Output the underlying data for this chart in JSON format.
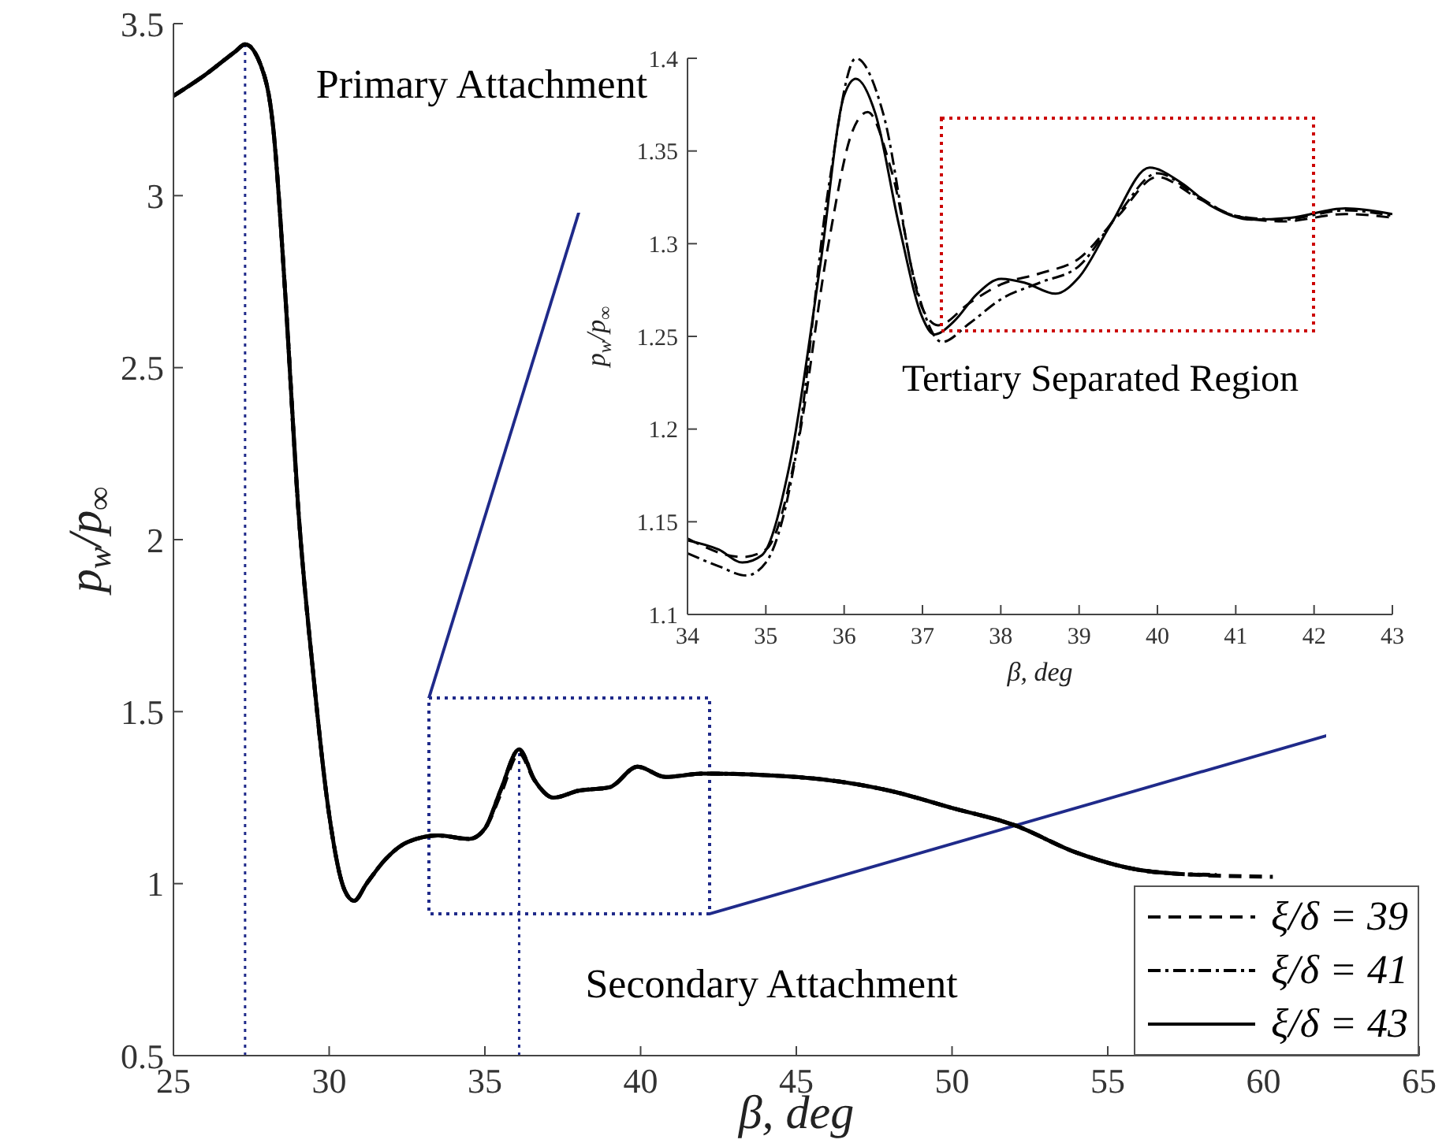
{
  "chart_data": [
    {
      "type": "line",
      "xlabel": "β, deg",
      "ylabel": "p$_{w}$/p$_{∞}$",
      "xlim": [
        25,
        65
      ],
      "xticks": [
        25,
        30,
        35,
        40,
        45,
        50,
        55,
        60,
        65
      ],
      "ylim": [
        0.5,
        3.5
      ],
      "yticks": [
        0.5,
        1,
        1.5,
        2,
        2.5,
        3,
        3.5
      ],
      "grid": false,
      "legend": "bottom right",
      "marker": "none",
      "series": [
        {
          "name": "ξ/δ = 39",
          "color": "#000000",
          "line_style": "dashed",
          "x": [
            25,
            26,
            27,
            27.3,
            27.8,
            28.2,
            28.6,
            29,
            29.5,
            30,
            30.5,
            30.8,
            31.2,
            31.8,
            32.5,
            33.5,
            34.5,
            35,
            35.5,
            36.1,
            36.6,
            37.2,
            38,
            39,
            39.9,
            40.8,
            42,
            45,
            48,
            50,
            52,
            54,
            56,
            57,
            58,
            60.3
          ],
          "values": [
            3.29,
            3.35,
            3.42,
            3.44,
            3.38,
            3.2,
            2.7,
            2.1,
            1.6,
            1.2,
            0.98,
            0.95,
            1.0,
            1.07,
            1.12,
            1.14,
            1.13,
            1.16,
            1.26,
            1.38,
            1.3,
            1.25,
            1.27,
            1.28,
            1.34,
            1.31,
            1.32,
            1.31,
            1.27,
            1.22,
            1.17,
            1.09,
            1.04,
            1.03,
            1.025,
            1.02
          ]
        },
        {
          "name": "ξ/δ = 41",
          "color": "#000000",
          "line_style": "dashdot",
          "x": [
            25,
            26,
            27,
            27.3,
            27.8,
            28.2,
            28.6,
            29,
            29.5,
            30,
            30.5,
            30.8,
            31.2,
            31.8,
            32.5,
            33.5,
            34.5,
            35,
            35.5,
            36.1,
            36.6,
            37.2,
            38,
            39,
            39.9,
            40.8,
            42,
            45,
            48,
            50,
            52,
            54,
            56,
            57,
            58.5
          ],
          "values": [
            3.29,
            3.35,
            3.42,
            3.44,
            3.38,
            3.2,
            2.7,
            2.1,
            1.6,
            1.2,
            0.98,
            0.95,
            1.0,
            1.07,
            1.12,
            1.14,
            1.13,
            1.16,
            1.27,
            1.39,
            1.3,
            1.25,
            1.27,
            1.28,
            1.34,
            1.31,
            1.32,
            1.31,
            1.27,
            1.22,
            1.17,
            1.09,
            1.04,
            1.03,
            1.025
          ]
        },
        {
          "name": "ξ/δ = 43",
          "color": "#000000",
          "line_style": "solid",
          "x": [
            25,
            26,
            27,
            27.3,
            27.8,
            28.2,
            28.6,
            29,
            29.5,
            30,
            30.5,
            30.8,
            31.2,
            31.8,
            32.5,
            33.5,
            34.5,
            35,
            35.5,
            36.1,
            36.6,
            37.2,
            38,
            39,
            39.9,
            40.8,
            42,
            45,
            48,
            50,
            52,
            54,
            56,
            57
          ],
          "values": [
            3.29,
            3.35,
            3.42,
            3.44,
            3.38,
            3.2,
            2.7,
            2.1,
            1.6,
            1.2,
            0.98,
            0.95,
            1.0,
            1.07,
            1.12,
            1.14,
            1.13,
            1.16,
            1.27,
            1.39,
            1.3,
            1.25,
            1.27,
            1.28,
            1.34,
            1.31,
            1.32,
            1.31,
            1.27,
            1.22,
            1.17,
            1.09,
            1.04,
            1.03
          ]
        }
      ],
      "ref_lines": [
        {
          "axis": "x",
          "value": 27.3,
          "label": "Primary Attachment",
          "color": "#1f2a8a",
          "line_style": "dotted"
        },
        {
          "axis": "x",
          "value": 36.1,
          "label": "Secondary Attachment",
          "color": "#1f2a8a",
          "line_style": "dotted"
        }
      ]
    },
    {
      "type": "line",
      "xlabel": "β, deg",
      "ylabel": "p$_{w}$/p$_{∞}$",
      "xlim": [
        34,
        43
      ],
      "xticks": [
        34,
        35,
        36,
        37,
        38,
        39,
        40,
        41,
        42,
        43
      ],
      "ylim": [
        1.1,
        1.4
      ],
      "yticks": [
        1.1,
        1.15,
        1.2,
        1.25,
        1.3,
        1.35,
        1.4
      ],
      "grid": false,
      "marker": "none",
      "annotations": [
        "Tertiary Separated Region"
      ],
      "series": [
        {
          "color": "#000000",
          "line_style": "dashed",
          "x": [
            34,
            34.7,
            35,
            35.4,
            35.8,
            36.1,
            36.3,
            36.6,
            37,
            37.2,
            37.6,
            38,
            38.5,
            39,
            39.5,
            40,
            40.5,
            41,
            41.6,
            42.4,
            43
          ],
          "values": [
            1.141,
            1.131,
            1.135,
            1.19,
            1.3,
            1.36,
            1.371,
            1.34,
            1.265,
            1.256,
            1.268,
            1.278,
            1.284,
            1.292,
            1.315,
            1.336,
            1.325,
            1.315,
            1.312,
            1.316,
            1.314
          ]
        },
        {
          "color": "#000000",
          "line_style": "dashdot",
          "x": [
            34,
            34.4,
            34.75,
            35,
            35.4,
            35.8,
            36.15,
            36.5,
            36.9,
            37.25,
            37.6,
            38,
            38.5,
            39,
            39.5,
            40,
            40.5,
            41,
            41.6,
            42.4,
            43
          ],
          "values": [
            1.133,
            1.126,
            1.121,
            1.128,
            1.19,
            1.33,
            1.4,
            1.37,
            1.28,
            1.247,
            1.257,
            1.27,
            1.279,
            1.288,
            1.316,
            1.338,
            1.326,
            1.315,
            1.313,
            1.318,
            1.315
          ]
        },
        {
          "color": "#000000",
          "line_style": "solid",
          "x": [
            34,
            34.4,
            34.7,
            34.95,
            35.3,
            35.7,
            36,
            36.15,
            36.4,
            36.7,
            37,
            37.15,
            37.4,
            37.7,
            38,
            38.3,
            38.7,
            39,
            39.4,
            39.9,
            40.3,
            40.7,
            41.2,
            41.7,
            42.4,
            43
          ],
          "values": [
            1.14,
            1.135,
            1.128,
            1.132,
            1.18,
            1.29,
            1.38,
            1.389,
            1.37,
            1.31,
            1.26,
            1.251,
            1.258,
            1.273,
            1.281,
            1.279,
            1.273,
            1.282,
            1.31,
            1.341,
            1.333,
            1.32,
            1.313,
            1.314,
            1.319,
            1.316
          ]
        }
      ]
    }
  ]
}
